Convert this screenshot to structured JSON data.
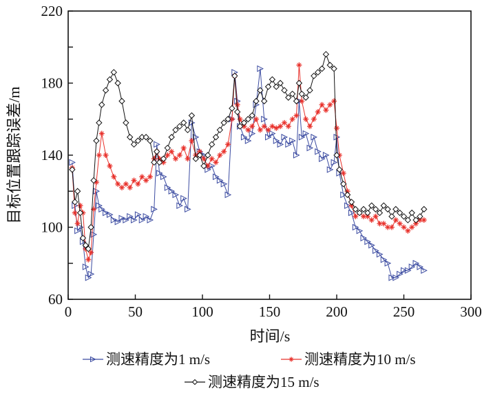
{
  "chart_data": {
    "type": "line",
    "title": "",
    "xlabel": "时间/s",
    "ylabel": "目标位置跟踪误差/m",
    "xlim": [
      0,
      300
    ],
    "ylim": [
      60,
      220
    ],
    "xticks": [
      "0",
      "50",
      "100",
      "150",
      "200",
      "250",
      "300"
    ],
    "yticks": [
      "60",
      "100",
      "140",
      "180",
      "220"
    ],
    "grid": false,
    "legend_position": "bottom",
    "series": [
      {
        "name": "测速精度为1 m/s",
        "color": "#3a4aa0",
        "marker": "triangle-right",
        "x": [
          3,
          5,
          7,
          9,
          11,
          13,
          15,
          17,
          19,
          21,
          23,
          25,
          28,
          31,
          34,
          37,
          40,
          43,
          46,
          49,
          52,
          55,
          58,
          61,
          64,
          66,
          68,
          71,
          74,
          77,
          80,
          83,
          86,
          89,
          92,
          95,
          98,
          101,
          104,
          107,
          110,
          113,
          116,
          119,
          122,
          124,
          126,
          128,
          131,
          134,
          137,
          140,
          143,
          146,
          149,
          152,
          155,
          158,
          161,
          164,
          167,
          170,
          172,
          174,
          177,
          180,
          183,
          186,
          189,
          192,
          195,
          198,
          200,
          202,
          205,
          208,
          211,
          214,
          217,
          220,
          223,
          226,
          229,
          232,
          235,
          238,
          241,
          244,
          247,
          250,
          253,
          256,
          259,
          262,
          265
        ],
        "y": [
          136,
          112,
          98,
          100,
          92,
          78,
          72,
          74,
          96,
          120,
          112,
          110,
          108,
          107,
          104,
          103,
          105,
          104,
          106,
          104,
          107,
          104,
          106,
          104,
          110,
          146,
          130,
          128,
          122,
          120,
          118,
          112,
          116,
          110,
          158,
          150,
          142,
          140,
          132,
          134,
          128,
          126,
          124,
          118,
          160,
          186,
          170,
          156,
          150,
          148,
          152,
          168,
          188,
          160,
          150,
          152,
          148,
          146,
          150,
          146,
          148,
          140,
          170,
          150,
          152,
          144,
          150,
          142,
          138,
          140,
          132,
          136,
          150,
          130,
          118,
          112,
          108,
          100,
          98,
          94,
          92,
          90,
          87,
          85,
          82,
          80,
          72,
          72,
          74,
          76,
          76,
          78,
          80,
          78,
          76
        ]
      },
      {
        "name": "测速精度为10 m/s",
        "color": "#e8302a",
        "marker": "star",
        "x": [
          3,
          5,
          7,
          9,
          11,
          13,
          15,
          17,
          19,
          21,
          23,
          25,
          28,
          31,
          34,
          37,
          40,
          43,
          46,
          49,
          52,
          55,
          58,
          61,
          64,
          66,
          68,
          71,
          74,
          77,
          80,
          83,
          86,
          89,
          92,
          95,
          98,
          101,
          104,
          107,
          110,
          113,
          116,
          119,
          122,
          124,
          126,
          128,
          131,
          134,
          137,
          140,
          143,
          146,
          149,
          152,
          155,
          158,
          161,
          164,
          167,
          170,
          172,
          174,
          177,
          180,
          183,
          186,
          189,
          192,
          195,
          198,
          200,
          202,
          205,
          208,
          211,
          214,
          217,
          220,
          223,
          226,
          229,
          232,
          235,
          238,
          241,
          244,
          247,
          250,
          253,
          256,
          259,
          262,
          265
        ],
        "y": [
          133,
          108,
          102,
          112,
          108,
          88,
          82,
          86,
          110,
          125,
          140,
          152,
          140,
          134,
          128,
          124,
          122,
          124,
          122,
          126,
          124,
          128,
          126,
          128,
          138,
          142,
          138,
          136,
          140,
          142,
          138,
          140,
          144,
          138,
          148,
          140,
          142,
          138,
          134,
          138,
          136,
          140,
          142,
          146,
          160,
          184,
          168,
          160,
          156,
          154,
          156,
          160,
          154,
          156,
          154,
          156,
          155,
          156,
          158,
          156,
          160,
          162,
          190,
          170,
          160,
          156,
          160,
          164,
          168,
          165,
          168,
          170,
          155,
          140,
          130,
          120,
          112,
          106,
          108,
          106,
          106,
          104,
          106,
          102,
          102,
          100,
          100,
          104,
          102,
          100,
          98,
          100,
          102,
          104,
          104
        ]
      },
      {
        "name": "测速精度为15 m/s",
        "color": "#111111",
        "marker": "diamond",
        "x": [
          3,
          5,
          7,
          9,
          11,
          13,
          15,
          17,
          19,
          21,
          23,
          25,
          28,
          31,
          34,
          37,
          40,
          43,
          46,
          49,
          52,
          55,
          58,
          61,
          64,
          66,
          68,
          71,
          74,
          77,
          80,
          83,
          86,
          89,
          92,
          95,
          98,
          101,
          104,
          107,
          110,
          113,
          116,
          119,
          122,
          124,
          126,
          128,
          131,
          134,
          137,
          140,
          143,
          146,
          149,
          152,
          155,
          158,
          161,
          164,
          167,
          170,
          172,
          174,
          177,
          180,
          183,
          186,
          189,
          192,
          195,
          198,
          200,
          202,
          205,
          208,
          211,
          214,
          217,
          220,
          223,
          226,
          229,
          232,
          235,
          238,
          241,
          244,
          247,
          250,
          253,
          256,
          259,
          262,
          265
        ],
        "y": [
          132,
          114,
          120,
          108,
          94,
          90,
          88,
          100,
          126,
          148,
          158,
          168,
          176,
          182,
          186,
          180,
          170,
          158,
          150,
          146,
          148,
          150,
          150,
          148,
          136,
          142,
          136,
          138,
          144,
          150,
          154,
          156,
          158,
          154,
          162,
          138,
          140,
          134,
          140,
          146,
          150,
          154,
          158,
          160,
          166,
          184,
          164,
          156,
          158,
          160,
          162,
          170,
          176,
          170,
          178,
          182,
          178,
          180,
          176,
          172,
          174,
          170,
          180,
          174,
          172,
          176,
          184,
          186,
          188,
          196,
          190,
          188,
          140,
          132,
          124,
          118,
          114,
          110,
          108,
          110,
          108,
          112,
          110,
          108,
          112,
          110,
          106,
          110,
          108,
          106,
          104,
          108,
          104,
          106,
          110
        ]
      }
    ]
  }
}
